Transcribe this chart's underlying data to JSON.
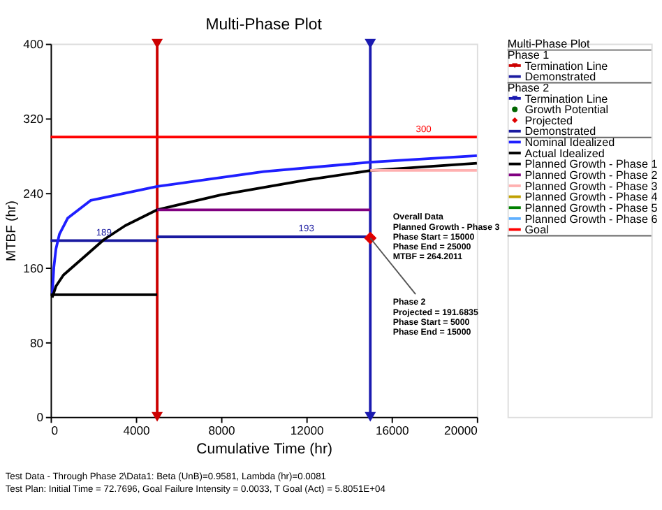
{
  "chart_data": {
    "type": "line",
    "title": "Multi-Phase Plot",
    "xlabel": "Cumulative Time (hr)",
    "ylabel": "MTBF (hr)",
    "legend_title": "Multi-Phase Plot",
    "xlim": [
      0,
      20000
    ],
    "xticks": [
      0,
      4000,
      8000,
      12000,
      16000,
      20000
    ],
    "ylim": [
      0,
      400
    ],
    "yticks": [
      0,
      80,
      160,
      240,
      320,
      400
    ],
    "grid": false,
    "legend": "right",
    "series": [
      {
        "name": "Termination Line",
        "color": "#cc0000",
        "marker": "triangle",
        "x": [
          5000,
          5000
        ],
        "values": [
          0,
          400
        ]
      },
      {
        "name": "Demonstrated",
        "color": "#1a1aa0",
        "x": [
          0,
          2500,
          5000
        ],
        "values": [
          189,
          189,
          189
        ],
        "value_labels": [
          null,
          "189",
          null
        ]
      },
      {
        "name": "Termination Line",
        "color": "#1a1ab0",
        "marker": "triangle",
        "x": [
          15000,
          15000
        ],
        "values": [
          0,
          400
        ]
      },
      {
        "name": "Growth Potential",
        "color": "#006600",
        "type": "scatter",
        "marker": "circle"
      },
      {
        "name": "Projected",
        "color": "#e00000",
        "type": "scatter",
        "marker": "diamond",
        "x": [
          15000
        ],
        "values": [
          191.6835
        ]
      },
      {
        "name": "Demonstrated",
        "color": "#1a1aa0",
        "x": [
          5000,
          12000,
          15000
        ],
        "values": [
          193,
          193,
          193
        ],
        "value_labels": [
          null,
          "193",
          null
        ]
      },
      {
        "name": "Nominal Idealized",
        "color": "#1f1fff",
        "x": [
          73,
          150,
          250,
          415,
          800,
          1875,
          5000,
          10000,
          15000,
          20000
        ],
        "values": [
          130,
          160,
          180,
          196,
          213,
          232,
          247,
          263,
          273,
          280
        ]
      },
      {
        "name": "Actual Idealized",
        "color": "#000000",
        "x": [
          73,
          250,
          600,
          1350,
          2500,
          3500,
          5000,
          8000,
          12000,
          15000,
          20000
        ],
        "values": [
          128,
          140,
          152,
          167,
          190,
          205,
          222,
          238,
          254,
          264,
          272
        ]
      },
      {
        "name": "Planned Growth - Phase 1",
        "color": "#000000",
        "x": [
          0,
          5000
        ],
        "values": [
          131,
          131
        ]
      },
      {
        "name": "Planned Growth - Phase 2",
        "color": "#800080",
        "x": [
          5000,
          15000
        ],
        "values": [
          222,
          222
        ]
      },
      {
        "name": "Planned Growth - Phase 3",
        "color": "#ffb0b0",
        "x": [
          15000,
          20000
        ],
        "values": [
          264.2011,
          264.2011
        ]
      },
      {
        "name": "Planned Growth - Phase 4",
        "color": "#c0a000"
      },
      {
        "name": "Planned Growth - Phase 5",
        "color": "#008000"
      },
      {
        "name": "Planned Growth - Phase 6",
        "color": "#60b0ff"
      },
      {
        "name": "Goal",
        "color": "#ff0000",
        "x": [
          0,
          17500,
          20000
        ],
        "values": [
          300,
          300,
          300
        ],
        "value_labels": [
          null,
          "300",
          null
        ]
      }
    ],
    "annotations": [
      "Phase 1",
      "Phase 2",
      "Overall Data\nPlanned Growth - Phase 3\nPhase Start = 15000\nPhase End = 25000\nMTBF = 264.2011",
      {
        "text": "Phase 2\nProjected = 191.6835\nPhase Start = 5000\nPhase End = 15000",
        "x": 15000,
        "y": 191.6835
      },
      "Test Data - Through Phase 2\\Data1: Beta (UnB)=0.9581, Lambda (hr)=0.0081",
      "Test Plan: Initial Time = 72.7696, Goal Failure Intensity = 0.0033, T Goal (Act) = 5.8051E+04"
    ]
  }
}
